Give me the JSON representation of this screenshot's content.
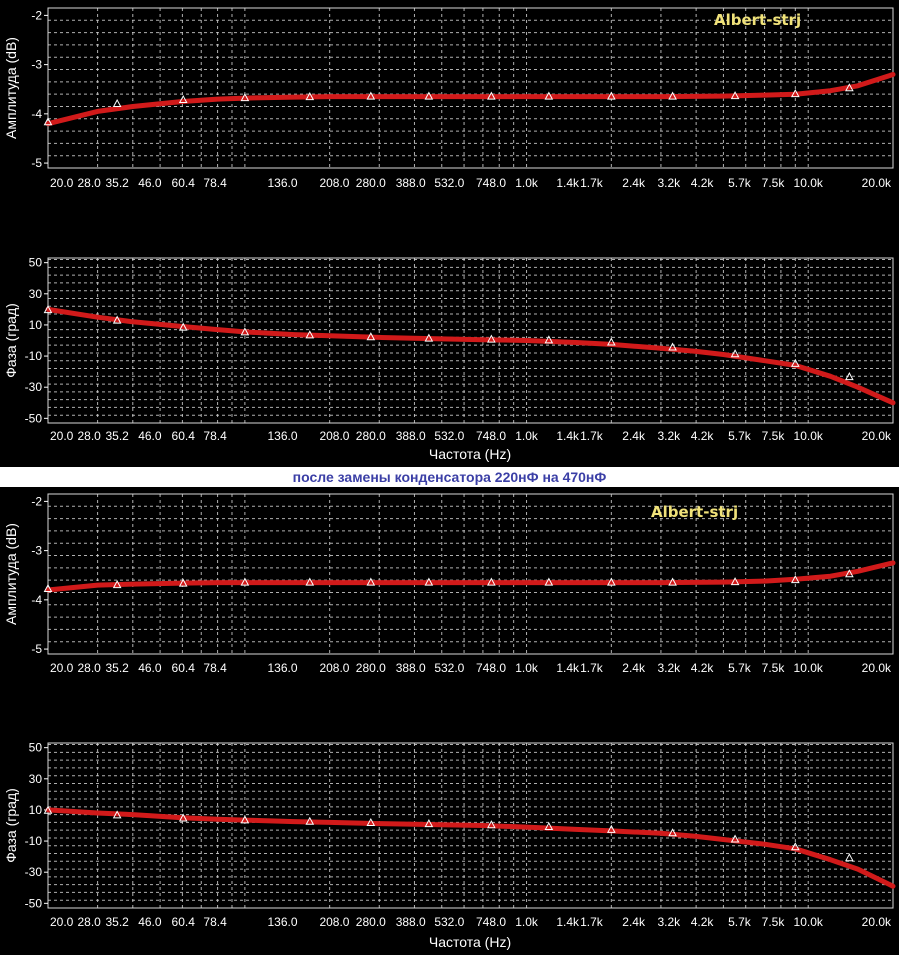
{
  "caption": "после замены конденсатора 220нФ на 470нФ",
  "colors": {
    "background": "#000000",
    "grid": "#cfcfcf",
    "curve": "#d11a1a",
    "marker": "#ffffff",
    "watermark": "#f0e27a",
    "caption": "#3b3fa6"
  },
  "chart_data": [
    {
      "type": "line",
      "xscale": "log",
      "xlim": [
        20,
        20000
      ],
      "ylim": [
        -5.1,
        -1.85
      ],
      "ylabel": "Амплитуда (dB)",
      "xlabel": "",
      "yticks": [
        "-2",
        "-3",
        "-4",
        "-5"
      ],
      "ytick_values": [
        -2,
        -3,
        -4,
        -5
      ],
      "xticks": [
        "20.0",
        "28.0",
        "35.2",
        "46.0",
        "60.4",
        "78.4",
        "136.0",
        "208.0",
        "280.0",
        "388.0",
        "532.0",
        "748.0",
        "1.0k",
        "1.4k",
        "1.7k",
        "2.4k",
        "3.2k",
        "4.2k",
        "5.7k",
        "7.5k",
        "10.0k",
        "20.0k"
      ],
      "xtick_values": [
        20,
        28,
        35.2,
        46,
        60.4,
        78.4,
        136,
        208,
        280,
        388,
        532,
        748,
        1000,
        1400,
        1700,
        2400,
        3200,
        4200,
        5700,
        7500,
        10000,
        20000
      ],
      "watermark": "Albert-strj",
      "series": [
        {
          "x": [
            20,
            30,
            40,
            60,
            80,
            100,
            150,
            200,
            300,
            500,
            1000,
            2000,
            3000,
            5000,
            7000,
            9000,
            12000,
            15000,
            20000
          ],
          "y": [
            -4.2,
            -3.95,
            -3.85,
            -3.75,
            -3.7,
            -3.68,
            -3.66,
            -3.65,
            -3.65,
            -3.65,
            -3.65,
            -3.65,
            -3.65,
            -3.64,
            -3.62,
            -3.6,
            -3.53,
            -3.43,
            -3.2
          ],
          "markers_x": [
            20,
            35.2,
            60.4,
            100,
            170,
            280,
            450,
            750,
            1200,
            2000,
            3300,
            5500,
            9000,
            14000
          ],
          "markers_y": [
            -4.17,
            -3.8,
            -3.72,
            -3.68,
            -3.66,
            -3.65,
            -3.65,
            -3.65,
            -3.65,
            -3.65,
            -3.65,
            -3.64,
            -3.6,
            -3.48
          ]
        }
      ]
    },
    {
      "type": "line",
      "xscale": "log",
      "xlim": [
        20,
        20000
      ],
      "ylim": [
        -53,
        53
      ],
      "ylabel": "Фаза (град)",
      "xlabel": "Частота (Hz)",
      "yticks": [
        "50",
        "30",
        "10",
        "-10",
        "-30",
        "-50"
      ],
      "ytick_values": [
        50,
        30,
        10,
        -10,
        -30,
        -50
      ],
      "xticks": [
        "20.0",
        "28.0",
        "35.2",
        "46.0",
        "60.4",
        "78.4",
        "136.0",
        "208.0",
        "280.0",
        "388.0",
        "532.0",
        "748.0",
        "1.0k",
        "1.4k",
        "1.7k",
        "2.4k",
        "3.2k",
        "4.2k",
        "5.7k",
        "7.5k",
        "10.0k",
        "20.0k"
      ],
      "xtick_values": [
        20,
        28,
        35.2,
        46,
        60.4,
        78.4,
        136,
        208,
        280,
        388,
        532,
        748,
        1000,
        1400,
        1700,
        2400,
        3200,
        4200,
        5700,
        7500,
        10000,
        20000
      ],
      "series": [
        {
          "x": [
            20,
            30,
            40,
            60,
            80,
            100,
            150,
            200,
            300,
            500,
            700,
            1000,
            1500,
            2000,
            3000,
            4000,
            5000,
            7000,
            9000,
            12000,
            15000,
            20000
          ],
          "y": [
            20,
            15,
            12,
            9,
            7,
            5.5,
            3.8,
            3,
            2,
            1,
            0.5,
            0,
            -1.3,
            -2.5,
            -5,
            -7,
            -9,
            -13,
            -16,
            -23,
            -30,
            -40
          ],
          "markers_x": [
            20,
            35.2,
            60.4,
            100,
            170,
            280,
            450,
            750,
            1200,
            2000,
            3300,
            5500,
            9000,
            14000
          ],
          "markers_y": [
            19.5,
            12.8,
            8.3,
            5.2,
            3.3,
            2.1,
            1.2,
            0.6,
            0.1,
            -1.3,
            -4.5,
            -8.8,
            -15,
            -23.5
          ]
        }
      ]
    },
    {
      "type": "line",
      "xscale": "log",
      "xlim": [
        20,
        20000
      ],
      "ylim": [
        -5.1,
        -1.85
      ],
      "ylabel": "Амплитуда (dB)",
      "xlabel": "",
      "yticks": [
        "-2",
        "-3",
        "-4",
        "-5"
      ],
      "ytick_values": [
        -2,
        -3,
        -4,
        -5
      ],
      "xticks": [
        "20.0",
        "28.0",
        "35.2",
        "46.0",
        "60.4",
        "78.4",
        "136.0",
        "208.0",
        "280.0",
        "388.0",
        "532.0",
        "748.0",
        "1.0k",
        "1.4k",
        "1.7k",
        "2.4k",
        "3.2k",
        "4.2k",
        "5.7k",
        "7.5k",
        "10.0k",
        "20.0k"
      ],
      "xtick_values": [
        20,
        28,
        35.2,
        46,
        60.4,
        78.4,
        136,
        208,
        280,
        388,
        532,
        748,
        1000,
        1400,
        1700,
        2400,
        3200,
        4200,
        5700,
        7500,
        10000,
        20000
      ],
      "watermark": "Albert-strj",
      "series": [
        {
          "x": [
            20,
            30,
            40,
            60,
            80,
            100,
            150,
            200,
            300,
            500,
            1000,
            2000,
            3000,
            5000,
            7000,
            9000,
            12000,
            15000,
            20000
          ],
          "y": [
            -3.8,
            -3.7,
            -3.68,
            -3.66,
            -3.65,
            -3.65,
            -3.65,
            -3.65,
            -3.65,
            -3.65,
            -3.65,
            -3.65,
            -3.65,
            -3.64,
            -3.62,
            -3.58,
            -3.52,
            -3.42,
            -3.25
          ],
          "markers_x": [
            20,
            35.2,
            60.4,
            100,
            170,
            280,
            450,
            750,
            1200,
            2000,
            3300,
            5500,
            9000,
            14000
          ],
          "markers_y": [
            -3.78,
            -3.7,
            -3.67,
            -3.65,
            -3.65,
            -3.65,
            -3.65,
            -3.65,
            -3.65,
            -3.65,
            -3.65,
            -3.64,
            -3.6,
            -3.48
          ]
        }
      ]
    },
    {
      "type": "line",
      "xscale": "log",
      "xlim": [
        20,
        20000
      ],
      "ylim": [
        -53,
        53
      ],
      "ylabel": "Фаза (град)",
      "xlabel": "Частота (Hz)",
      "yticks": [
        "50",
        "30",
        "10",
        "-10",
        "-30",
        "-50"
      ],
      "ytick_values": [
        50,
        30,
        10,
        -10,
        -30,
        -50
      ],
      "xticks": [
        "20.0",
        "28.0",
        "35.2",
        "46.0",
        "60.4",
        "78.4",
        "136.0",
        "208.0",
        "280.0",
        "388.0",
        "532.0",
        "748.0",
        "1.0k",
        "1.4k",
        "1.7k",
        "2.4k",
        "3.2k",
        "4.2k",
        "5.7k",
        "7.5k",
        "10.0k",
        "20.0k"
      ],
      "xtick_values": [
        20,
        28,
        35.2,
        46,
        60.4,
        78.4,
        136,
        208,
        280,
        388,
        532,
        748,
        1000,
        1400,
        1700,
        2400,
        3200,
        4200,
        5700,
        7500,
        10000,
        20000
      ],
      "series": [
        {
          "x": [
            20,
            30,
            40,
            60,
            80,
            100,
            150,
            200,
            300,
            500,
            700,
            1000,
            1500,
            2000,
            3000,
            4000,
            5000,
            7000,
            9000,
            12000,
            15000,
            20000
          ],
          "y": [
            10,
            8,
            7,
            5,
            4,
            3.5,
            2.5,
            2,
            1.2,
            0.5,
            0,
            -1,
            -2.5,
            -3.5,
            -5,
            -7,
            -9,
            -12,
            -15,
            -22,
            -28,
            -39
          ],
          "markers_x": [
            20,
            35.2,
            60.4,
            100,
            170,
            280,
            450,
            750,
            1200,
            2000,
            3300,
            5500,
            9000,
            14000
          ],
          "markers_y": [
            9.5,
            6.5,
            4.5,
            3.3,
            2.4,
            1.6,
            0.9,
            0.2,
            -1,
            -2.8,
            -5,
            -9,
            -14,
            -21
          ]
        }
      ]
    }
  ]
}
